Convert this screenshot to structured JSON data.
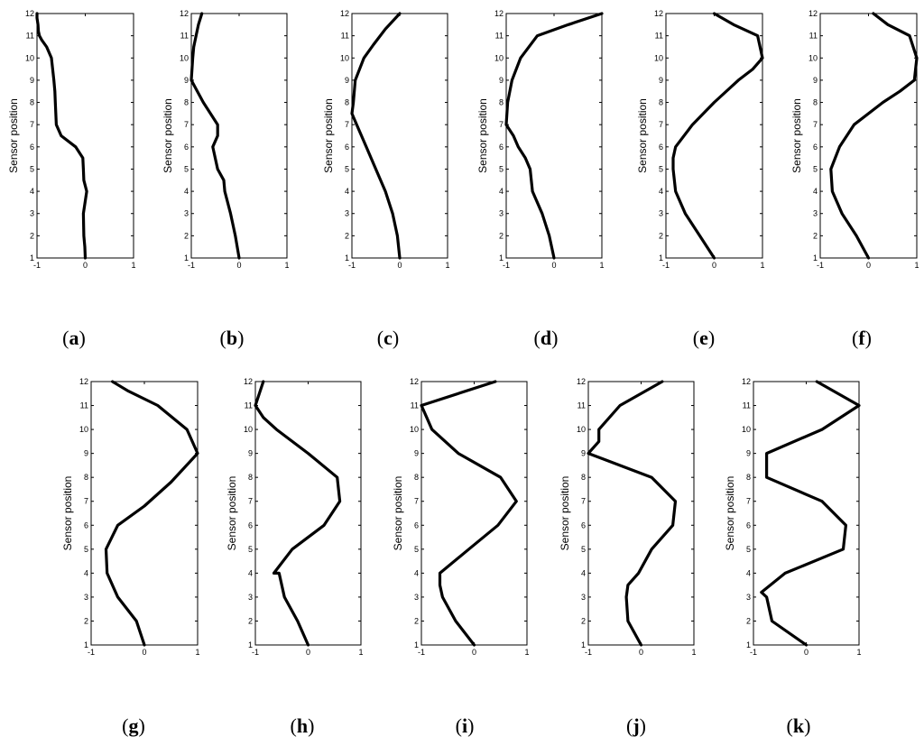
{
  "chart_data": [
    {
      "type": "line",
      "caption": "a",
      "ylabel": "Sensor position",
      "xlim": [
        -1,
        1
      ],
      "ylim": [
        1,
        12
      ],
      "x_ticks": [
        "-1",
        "0",
        "1"
      ],
      "y_ticks": [
        "1",
        "2",
        "3",
        "4",
        "5",
        "6",
        "7",
        "8",
        "9",
        "10",
        "11",
        "12"
      ],
      "series": [
        {
          "x": [
            0.0,
            -0.01,
            -0.03,
            -0.04,
            0.03,
            -0.03,
            -0.04,
            -0.05,
            -0.2,
            -0.5,
            -0.6,
            -0.62,
            -0.63,
            -0.65,
            -0.7,
            -0.8,
            -0.9,
            -0.95,
            -0.97,
            -0.98,
            -1.0,
            -1.0
          ],
          "y": [
            1,
            1.5,
            2,
            3,
            4,
            4.5,
            5,
            5.5,
            6,
            6.5,
            7,
            8,
            8.5,
            9,
            10,
            10.5,
            10.8,
            11,
            11.2,
            11.5,
            11.8,
            12
          ]
        }
      ]
    },
    {
      "type": "line",
      "caption": "b",
      "ylabel": "Sensor position",
      "xlim": [
        -1,
        1
      ],
      "ylim": [
        1,
        12
      ],
      "x_ticks": [
        "-1",
        "0",
        "1"
      ],
      "y_ticks": [
        "1",
        "2",
        "3",
        "4",
        "5",
        "6",
        "7",
        "8",
        "9",
        "10",
        "11",
        "12"
      ],
      "series": [
        {
          "x": [
            0.0,
            -0.08,
            -0.18,
            -0.3,
            -0.32,
            -0.45,
            -0.55,
            -0.45,
            -0.45,
            -0.75,
            -1.0,
            -0.97,
            -0.95,
            -0.9,
            -0.85,
            -0.78
          ],
          "y": [
            1,
            2,
            3,
            4,
            4.5,
            5,
            6,
            6.5,
            7,
            8,
            9,
            10,
            10.5,
            11,
            11.5,
            12
          ]
        }
      ]
    },
    {
      "type": "line",
      "caption": "c",
      "ylabel": "Sensor position",
      "xlim": [
        -1,
        1
      ],
      "ylim": [
        1,
        12
      ],
      "x_ticks": [
        "-1",
        "0",
        "1"
      ],
      "y_ticks": [
        "1",
        "2",
        "3",
        "4",
        "5",
        "6",
        "7",
        "8",
        "9",
        "10",
        "11",
        "12"
      ],
      "series": [
        {
          "x": [
            0.0,
            -0.05,
            -0.15,
            -0.3,
            -0.5,
            -0.7,
            -0.9,
            -1.0,
            -0.97,
            -0.93,
            -0.75,
            -0.55,
            -0.3,
            0.0
          ],
          "y": [
            1,
            2,
            3,
            4,
            5,
            6,
            7,
            7.5,
            8,
            9,
            10,
            10.6,
            11.3,
            12
          ]
        }
      ]
    },
    {
      "type": "line",
      "caption": "d",
      "ylabel": "Sensor position",
      "xlim": [
        -1,
        1
      ],
      "ylim": [
        1,
        12
      ],
      "x_ticks": [
        "-1",
        "0",
        "1"
      ],
      "y_ticks": [
        "1",
        "2",
        "3",
        "4",
        "5",
        "6",
        "7",
        "8",
        "9",
        "10",
        "11",
        "12"
      ],
      "series": [
        {
          "x": [
            0.0,
            -0.1,
            -0.25,
            -0.45,
            -0.5,
            -0.6,
            -0.75,
            -0.85,
            -1.0,
            -0.97,
            -0.88,
            -0.7,
            -0.35,
            0.3,
            1.0
          ],
          "y": [
            1,
            2,
            3,
            4,
            5,
            5.5,
            6,
            6.5,
            7,
            8,
            9,
            10,
            11,
            11.5,
            12
          ]
        }
      ]
    },
    {
      "type": "line",
      "caption": "e",
      "ylabel": "Sensor position",
      "xlim": [
        -1,
        1
      ],
      "ylim": [
        1,
        12
      ],
      "x_ticks": [
        "-1",
        "0",
        "1"
      ],
      "y_ticks": [
        "1",
        "2",
        "3",
        "4",
        "5",
        "6",
        "7",
        "8",
        "9",
        "10",
        "11",
        "12"
      ],
      "series": [
        {
          "x": [
            0.0,
            -0.3,
            -0.6,
            -0.8,
            -0.85,
            -0.85,
            -0.8,
            -0.45,
            0.0,
            0.5,
            0.8,
            1.0,
            0.9,
            0.4,
            0.0
          ],
          "y": [
            1,
            2,
            3,
            4,
            5,
            5.5,
            6,
            7,
            8,
            9,
            9.5,
            10,
            11,
            11.5,
            12
          ]
        }
      ]
    },
    {
      "type": "line",
      "caption": "f",
      "ylabel": "Sensor position",
      "xlim": [
        -1,
        1
      ],
      "ylim": [
        1,
        12
      ],
      "x_ticks": [
        "-1",
        "0",
        "1"
      ],
      "y_ticks": [
        "1",
        "2",
        "3",
        "4",
        "5",
        "6",
        "7",
        "8",
        "9",
        "10",
        "11",
        "12"
      ],
      "series": [
        {
          "x": [
            0.0,
            -0.25,
            -0.55,
            -0.75,
            -0.78,
            -0.6,
            -0.3,
            0.3,
            0.65,
            0.95,
            1.0,
            0.85,
            0.4,
            0.1
          ],
          "y": [
            1,
            2,
            3,
            4,
            5,
            6,
            7,
            8,
            8.5,
            9,
            10,
            11,
            11.5,
            12
          ]
        }
      ]
    },
    {
      "type": "line",
      "caption": "g",
      "ylabel": "Sensor position",
      "xlim": [
        -1,
        1
      ],
      "ylim": [
        1,
        12
      ],
      "x_ticks": [
        "-1",
        "0",
        "1"
      ],
      "y_ticks": [
        "1",
        "2",
        "3",
        "4",
        "5",
        "6",
        "7",
        "8",
        "9",
        "10",
        "11",
        "12"
      ],
      "series": [
        {
          "x": [
            0.0,
            -0.15,
            -0.5,
            -0.7,
            -0.72,
            -0.5,
            0.0,
            0.5,
            1.0,
            0.8,
            0.25,
            -0.3,
            -0.6
          ],
          "y": [
            1,
            2,
            3,
            4,
            5,
            6,
            6.8,
            7.8,
            9,
            10,
            11,
            11.6,
            12
          ]
        }
      ]
    },
    {
      "type": "line",
      "caption": "h",
      "ylabel": "Sensor position",
      "xlim": [
        -1,
        1
      ],
      "ylim": [
        1,
        12
      ],
      "x_ticks": [
        "-1",
        "0",
        "1"
      ],
      "y_ticks": [
        "1",
        "2",
        "3",
        "4",
        "5",
        "6",
        "7",
        "8",
        "9",
        "10",
        "11",
        "12"
      ],
      "series": [
        {
          "x": [
            0.0,
            -0.2,
            -0.45,
            -0.55,
            -0.65,
            -0.3,
            0.3,
            0.6,
            0.55,
            0.0,
            -0.6,
            -0.85,
            -1.0,
            -0.85
          ],
          "y": [
            1,
            2,
            3,
            4,
            4,
            5,
            6,
            7,
            8,
            9,
            10,
            10.5,
            11,
            12
          ]
        }
      ]
    },
    {
      "type": "line",
      "caption": "i",
      "ylabel": "Sensor position",
      "xlim": [
        -1,
        1
      ],
      "ylim": [
        1,
        12
      ],
      "x_ticks": [
        "-1",
        "0",
        "1"
      ],
      "y_ticks": [
        "1",
        "2",
        "3",
        "4",
        "5",
        "6",
        "7",
        "8",
        "9",
        "10",
        "11",
        "12"
      ],
      "series": [
        {
          "x": [
            0.0,
            -0.35,
            -0.6,
            -0.65,
            -0.65,
            -0.1,
            0.45,
            0.8,
            0.5,
            -0.3,
            -0.8,
            -0.9,
            -1.0,
            0.4
          ],
          "y": [
            1,
            2,
            3,
            3.5,
            4,
            5,
            6,
            7,
            8,
            9,
            10,
            10.5,
            11,
            12
          ]
        }
      ]
    },
    {
      "type": "line",
      "caption": "j",
      "ylabel": "Sensor position",
      "xlim": [
        -1,
        1
      ],
      "ylim": [
        1,
        12
      ],
      "x_ticks": [
        "-1",
        "0",
        "1"
      ],
      "y_ticks": [
        "1",
        "2",
        "3",
        "4",
        "5",
        "6",
        "7",
        "8",
        "9",
        "10",
        "11",
        "12"
      ],
      "series": [
        {
          "x": [
            0.0,
            -0.25,
            -0.28,
            -0.25,
            -0.05,
            0.2,
            0.6,
            0.65,
            0.2,
            -1.0,
            -0.8,
            -0.8,
            -0.4,
            0.4
          ],
          "y": [
            1,
            2,
            3,
            3.5,
            4,
            5,
            6,
            7,
            8,
            9,
            9.5,
            10,
            11,
            12
          ]
        }
      ]
    },
    {
      "type": "line",
      "caption": "k",
      "ylabel": "Sensor position",
      "xlim": [
        -1,
        1
      ],
      "ylim": [
        1,
        12
      ],
      "x_ticks": [
        "-1",
        "0",
        "1"
      ],
      "y_ticks": [
        "1",
        "2",
        "3",
        "4",
        "5",
        "6",
        "7",
        "8",
        "9",
        "10",
        "11",
        "12"
      ],
      "series": [
        {
          "x": [
            0.0,
            -0.65,
            -0.75,
            -0.85,
            -0.4,
            0.7,
            0.75,
            0.3,
            -0.75,
            -0.75,
            0.3,
            1.0,
            0.2
          ],
          "y": [
            1,
            2,
            3,
            3.2,
            4,
            5,
            6,
            7,
            8,
            9,
            10,
            11,
            12
          ]
        }
      ]
    }
  ]
}
